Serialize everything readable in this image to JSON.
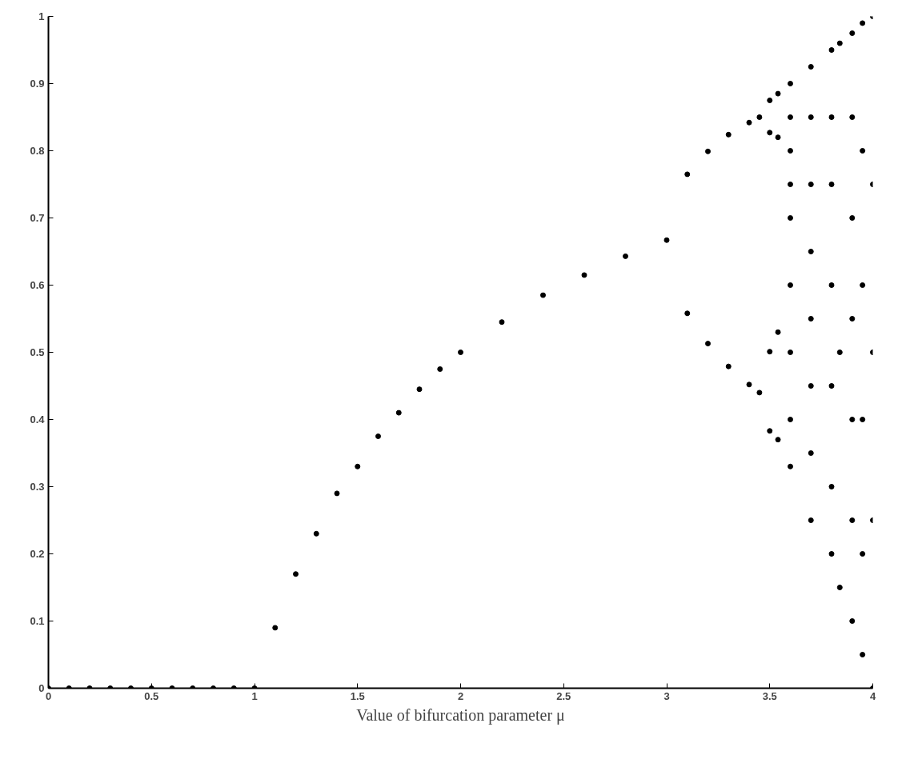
{
  "chart_data": {
    "type": "scatter",
    "xlabel": "Value of bifurcation parameter μ",
    "marker": "circle",
    "grid": false,
    "xlim": [
      0,
      4
    ],
    "ylim": [
      0,
      1
    ],
    "xticks": [
      0,
      0.5,
      1,
      1.5,
      2,
      2.5,
      3,
      3.5,
      4
    ],
    "yticks": [
      0,
      0.1,
      0.2,
      0.3,
      0.4,
      0.5,
      0.6,
      0.7,
      0.8,
      0.9,
      1
    ],
    "series": [
      {
        "color": "#000000",
        "x": [
          0,
          0.1,
          0.2,
          0.3,
          0.4,
          0.5,
          0.6,
          0.7,
          0.8,
          0.9,
          1,
          1.1,
          1.2,
          1.3,
          1.4,
          1.5,
          1.6,
          1.7,
          1.8,
          1.9,
          2,
          2.2,
          2.4,
          2.6,
          2.8,
          3,
          3.1,
          3.1,
          3.2,
          3.2,
          3.3,
          3.3,
          3.4,
          3.4,
          3.45,
          3.45,
          3.5,
          3.5,
          3.5,
          3.5,
          3.54,
          3.54,
          3.54,
          3.54,
          3.6,
          3.6,
          3.6,
          3.6,
          3.6,
          3.6,
          3.6,
          3.6,
          3.6,
          3.7,
          3.7,
          3.7,
          3.7,
          3.7,
          3.7,
          3.7,
          3.7,
          3.8,
          3.8,
          3.8,
          3.8,
          3.8,
          3.8,
          3.8,
          3.84,
          3.84,
          3.84,
          3.9,
          3.9,
          3.9,
          3.9,
          3.9,
          3.9,
          3.9,
          3.95,
          3.95,
          3.95,
          3.95,
          3.95,
          3.95,
          4,
          4,
          4,
          4,
          4
        ],
        "values": [
          0,
          0,
          0,
          0,
          0,
          0,
          0,
          0,
          0,
          0,
          0,
          0.09,
          0.17,
          0.23,
          0.29,
          0.33,
          0.375,
          0.41,
          0.445,
          0.475,
          0.5,
          0.545,
          0.585,
          0.615,
          0.643,
          0.667,
          0.765,
          0.558,
          0.799,
          0.513,
          0.824,
          0.479,
          0.842,
          0.452,
          0.85,
          0.44,
          0.875,
          0.827,
          0.501,
          0.383,
          0.885,
          0.82,
          0.53,
          0.37,
          0.9,
          0.85,
          0.8,
          0.75,
          0.7,
          0.6,
          0.5,
          0.4,
          0.33,
          0.925,
          0.85,
          0.75,
          0.65,
          0.55,
          0.45,
          0.35,
          0.25,
          0.95,
          0.85,
          0.75,
          0.6,
          0.45,
          0.3,
          0.2,
          0.96,
          0.5,
          0.15,
          0.975,
          0.85,
          0.7,
          0.55,
          0.4,
          0.25,
          0.1,
          0.99,
          0.8,
          0.6,
          0.4,
          0.2,
          0.05,
          1,
          0.75,
          0.5,
          0.25,
          0
        ]
      }
    ]
  }
}
